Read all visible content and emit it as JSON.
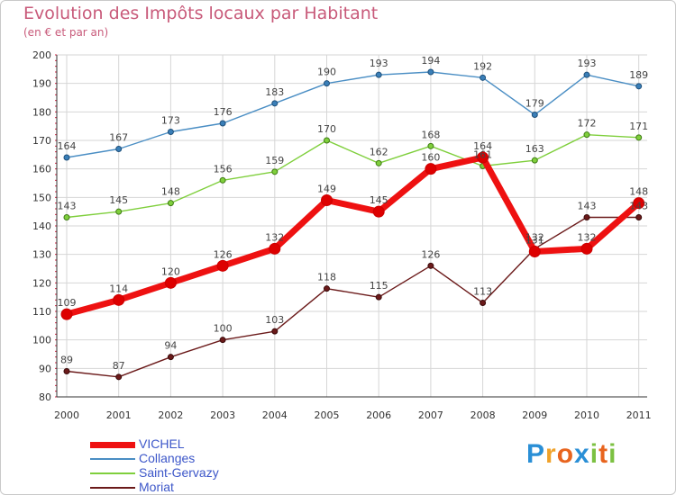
{
  "header": {
    "title": "Evolution des Impôts locaux par Habitant",
    "subtitle": "(en € et par an)"
  },
  "logo": {
    "letters": [
      "P",
      "r",
      "o",
      "x",
      "i",
      "t",
      "i"
    ],
    "colors": [
      "#2a8fd6",
      "#f0a22a",
      "#e8641e",
      "#2a8fd6",
      "#7cc142",
      "#e8641e",
      "#7cc142"
    ]
  },
  "chart_data": {
    "type": "line",
    "x": [
      "2000",
      "2001",
      "2002",
      "2003",
      "2004",
      "2005",
      "2006",
      "2007",
      "2008",
      "2009",
      "2010",
      "2011"
    ],
    "ylim": [
      80,
      200
    ],
    "yticks": [
      80,
      90,
      100,
      110,
      120,
      130,
      140,
      150,
      160,
      170,
      180,
      190,
      200
    ],
    "grid": true,
    "legend_position": "bottom-left",
    "series": [
      {
        "name": "VICHEL",
        "values": [
          109,
          114,
          120,
          126,
          132,
          149,
          145,
          160,
          164,
          131,
          132,
          148
        ],
        "color": "#ee1111"
      },
      {
        "name": "Collanges",
        "values": [
          164,
          167,
          173,
          176,
          183,
          190,
          193,
          194,
          192,
          179,
          193,
          189
        ],
        "color": "#4a8ec4"
      },
      {
        "name": "Saint-Gervazy",
        "values": [
          143,
          145,
          148,
          156,
          159,
          170,
          162,
          168,
          161,
          163,
          172,
          171
        ],
        "color": "#7fcf3c"
      },
      {
        "name": "Moriat",
        "values": [
          89,
          87,
          94,
          100,
          103,
          118,
          115,
          126,
          113,
          132,
          143,
          143
        ],
        "color": "#6b1a1a"
      }
    ]
  }
}
